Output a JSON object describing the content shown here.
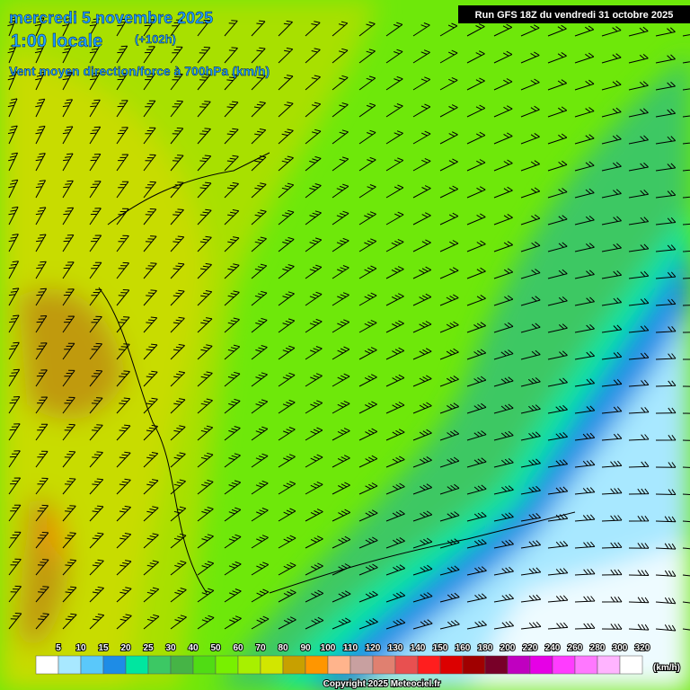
{
  "header": {
    "date": "mercredi 5 novembre 2025",
    "time": "1:00 locale",
    "lead": "(+102h)",
    "subtitle": "Vent moyen direction/force à 700hPa (km/h)",
    "run": "Run GFS 18Z du vendredi 31 octobre 2025"
  },
  "legend": {
    "labels": [
      5,
      10,
      15,
      20,
      25,
      30,
      40,
      50,
      60,
      70,
      80,
      90,
      100,
      110,
      120,
      130,
      140,
      150,
      160,
      180,
      200,
      220,
      240,
      260,
      280,
      300,
      320
    ],
    "colors": [
      "#ffffff",
      "#a8e8ff",
      "#5ac8fa",
      "#1e8ce6",
      "#00e6a0",
      "#3cc864",
      "#46b446",
      "#50dc14",
      "#78f000",
      "#a8f000",
      "#d2e600",
      "#c8a000",
      "#ff9600",
      "#ffb48c",
      "#c8a0a0",
      "#e08070",
      "#e85050",
      "#ff1e1e",
      "#dc0000",
      "#a00000",
      "#780028",
      "#c000c0",
      "#e600e6",
      "#ff3cff",
      "#ff78ff",
      "#ffb4ff",
      "#ffffff"
    ],
    "unit": "(km/h)"
  },
  "footer": {
    "copyright": "Copyright 2025 Meteociel.fr"
  }
}
